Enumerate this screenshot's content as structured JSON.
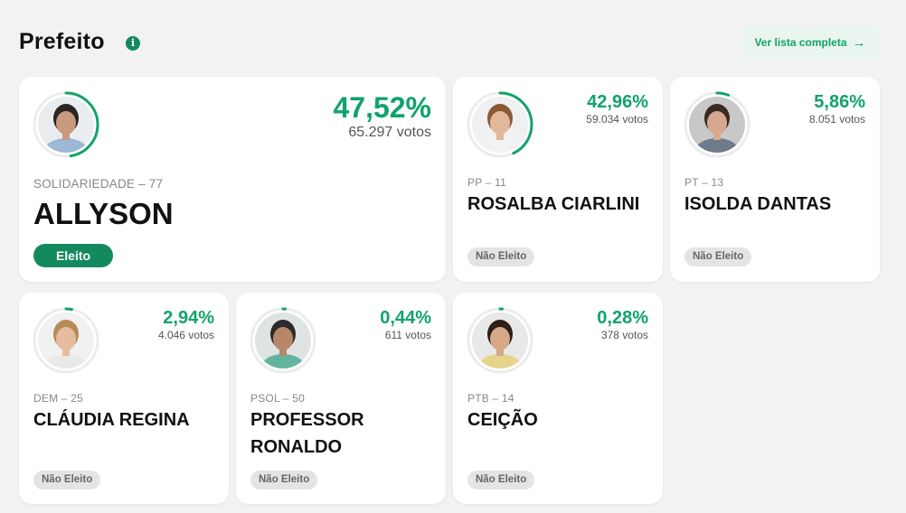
{
  "section": {
    "title": "Prefeito",
    "info_icon": "info-icon",
    "list_button_label": "Ver lista completa",
    "list_button_icon": "arrow-right-icon"
  },
  "colors": {
    "accent": "#10a36b",
    "elected_badge": "#138a5e",
    "not_elected_badge": "#e4e4e4"
  },
  "candidates": [
    {
      "party": "SOLIDARIEDADE – 77",
      "name": "ALLYSON",
      "percent": "47,52%",
      "share": 0.4752,
      "votes": "65.297 votos",
      "status": "Eleito"
    },
    {
      "party": "PP – 11",
      "name": "ROSALBA CIARLINI",
      "percent": "42,96%",
      "share": 0.4296,
      "votes": "59.034 votos",
      "status": "Não Eleito"
    },
    {
      "party": "PT – 13",
      "name": "ISOLDA DANTAS",
      "percent": "5,86%",
      "share": 0.0586,
      "votes": "8.051 votos",
      "status": "Não Eleito"
    },
    {
      "party": "DEM – 25",
      "name": "CLÁUDIA REGINA",
      "percent": "2,94%",
      "share": 0.0294,
      "votes": "4.046 votos",
      "status": "Não Eleito"
    },
    {
      "party": "PSOL – 50",
      "name": "PROFESSOR RONALDO",
      "percent": "0,44%",
      "share": 0.0044,
      "votes": "611 votos",
      "status": "Não Eleito"
    },
    {
      "party": "PTB – 14",
      "name": "CEIÇÃO",
      "percent": "0,28%",
      "share": 0.0028,
      "votes": "378 votos",
      "status": "Não Eleito"
    }
  ]
}
